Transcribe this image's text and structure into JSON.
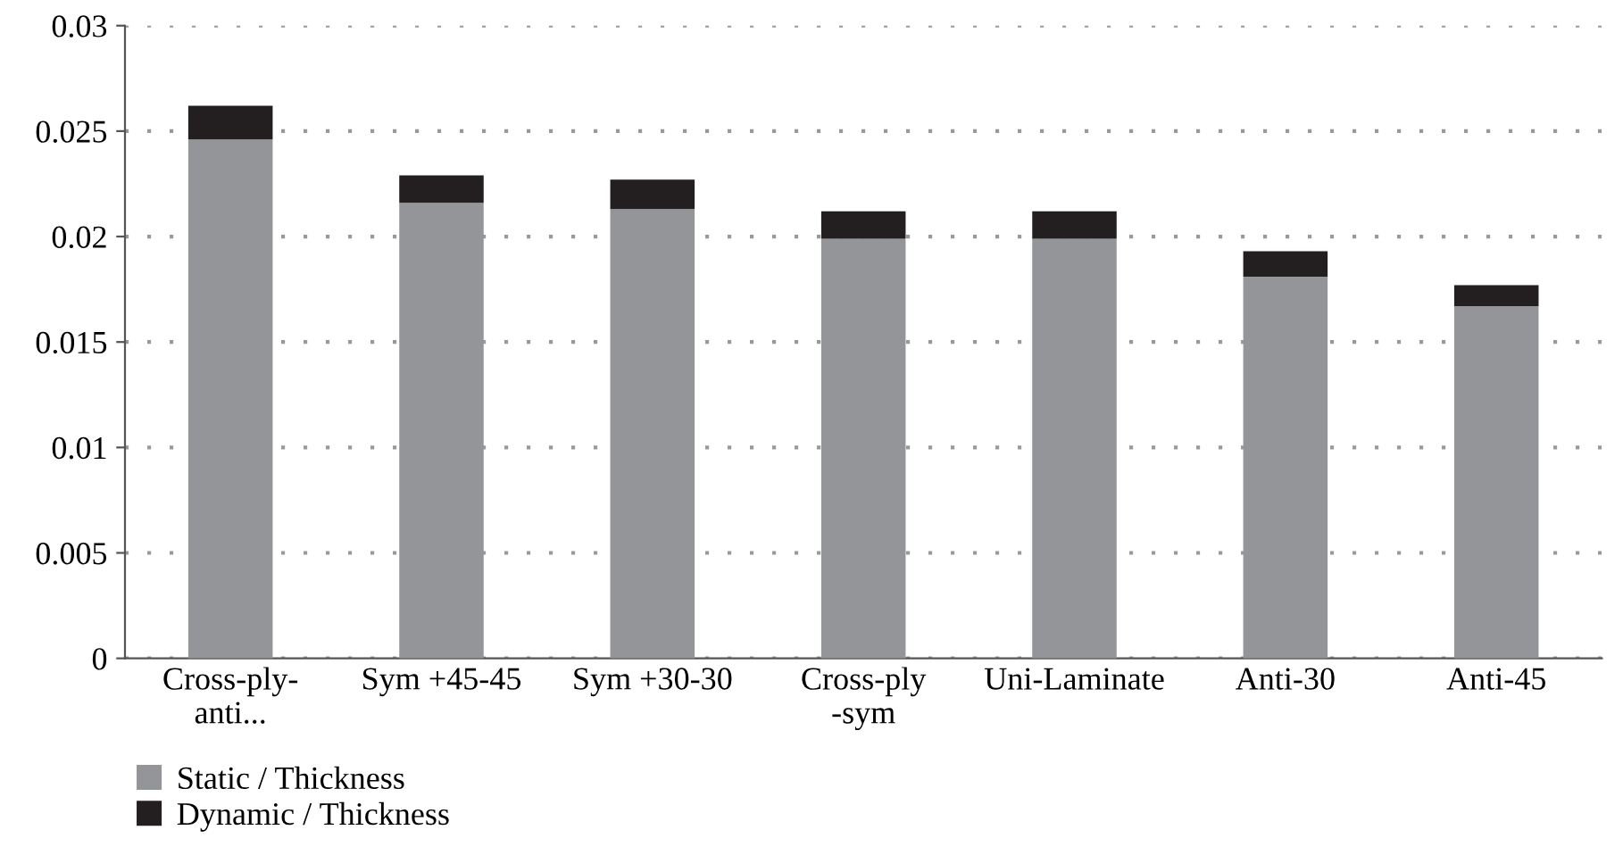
{
  "chart_data": {
    "type": "bar",
    "stacked": true,
    "categories": [
      "Cross-ply-\nanti...",
      "Sym +45-45",
      "Sym +30-30",
      "Cross-ply\n-sym",
      "Uni-Laminate",
      "Anti-30",
      "Anti-45"
    ],
    "series": [
      {
        "name": "Static / Thickness",
        "color": "#939598",
        "values": [
          0.0246,
          0.0216,
          0.0213,
          0.0199,
          0.0199,
          0.0181,
          0.0167
        ]
      },
      {
        "name": "Dynamic / Thickness",
        "color": "#231f20",
        "values": [
          0.0016,
          0.0013,
          0.0014,
          0.0013,
          0.0013,
          0.0012,
          0.001
        ]
      }
    ],
    "ylim": [
      0,
      0.03
    ],
    "yticks": [
      0,
      0.005,
      0.01,
      0.015,
      0.02,
      0.025,
      0.03
    ],
    "grid": "y",
    "legend": "bottom left"
  }
}
